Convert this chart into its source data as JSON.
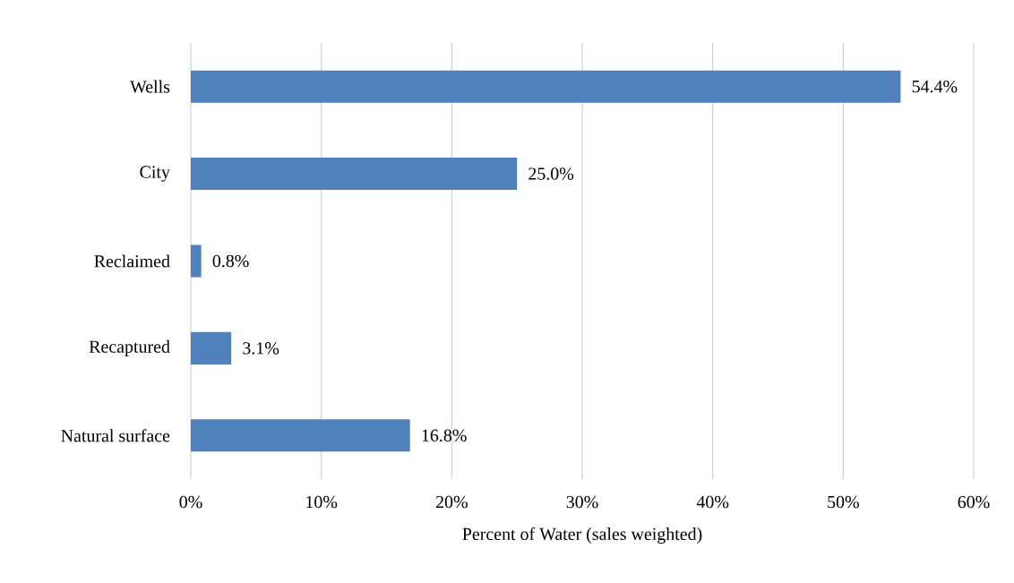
{
  "chart_data": {
    "type": "bar",
    "orientation": "horizontal",
    "xlabel": "Percent of Water (sales weighted)",
    "categories": [
      "Wells",
      "City",
      "Reclaimed",
      "Recaptured",
      "Natural surface"
    ],
    "values": [
      54.4,
      25.0,
      0.8,
      3.1,
      16.8
    ],
    "value_labels": [
      "54.4%",
      "25.0%",
      "0.8%",
      "3.1%",
      "16.8%"
    ],
    "color": "#4f81bd",
    "xlim": [
      0,
      60
    ],
    "xticks": [
      {
        "value": 0,
        "label": "0%"
      },
      {
        "value": 10,
        "label": "10%"
      },
      {
        "value": 20,
        "label": "20%"
      },
      {
        "value": 30,
        "label": "30%"
      },
      {
        "value": 40,
        "label": "40%"
      },
      {
        "value": 50,
        "label": "50%"
      },
      {
        "value": 60,
        "label": "60%"
      }
    ],
    "grid": "x"
  }
}
